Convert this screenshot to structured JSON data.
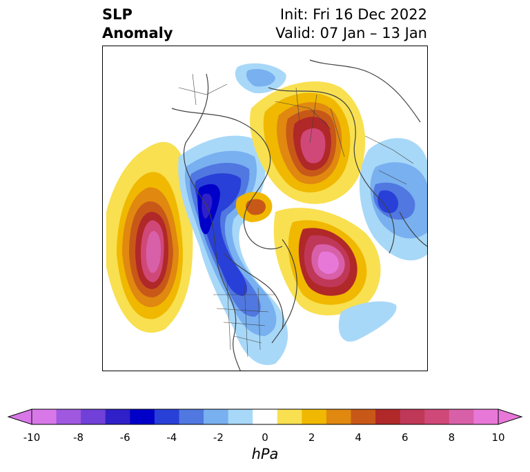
{
  "title": {
    "left_line1": "SLP",
    "left_line2": "Anomaly",
    "init": "Init: Fri 16 Dec 2022",
    "valid": "Valid: 07 Jan – 13 Jan"
  },
  "colorbar": {
    "units": "hPa",
    "ticks": [
      "-10",
      "-8",
      "-6",
      "-4",
      "-2",
      "0",
      "2",
      "4",
      "6",
      "8",
      "10"
    ],
    "colors": [
      "#d878e8",
      "#a058e0",
      "#7040d8",
      "#3020c8",
      "#0000c8",
      "#2840d8",
      "#5078e0",
      "#78b0f0",
      "#a8d8f8",
      "#ffffff",
      "#f8e050",
      "#f0b800",
      "#e08810",
      "#c85818",
      "#b02828",
      "#c03858",
      "#d04878",
      "#d860a8",
      "#e878d8"
    ],
    "extend_left_color": "#d878e8",
    "extend_right_color": "#e878d8"
  }
}
